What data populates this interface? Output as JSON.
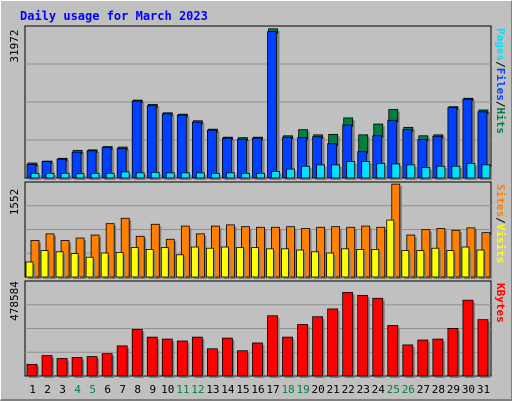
{
  "title": "Daily usage for March 2023",
  "colors": {
    "title": "#0000ff",
    "hits": "#008040",
    "files": "#0040ff",
    "pages": "#00e0ff",
    "visits": "#ffff00",
    "sites": "#ff8000",
    "kbytes": "#ff0000",
    "weekend": "#008040",
    "weekday": "#000000"
  },
  "chart_data": [
    {
      "type": "bar",
      "title": "Daily usage for March 2023",
      "max_label": "31972",
      "side_labels": [
        "Pages",
        "/",
        "Files",
        "/",
        "Hits"
      ],
      "ylim": [
        0,
        31972
      ],
      "categories": [
        "1",
        "2",
        "3",
        "4",
        "5",
        "6",
        "7",
        "8",
        "9",
        "10",
        "11",
        "12",
        "13",
        "14",
        "15",
        "16",
        "17",
        "18",
        "19",
        "20",
        "21",
        "22",
        "23",
        "24",
        "25",
        "26",
        "27",
        "28",
        "29",
        "30",
        "31"
      ],
      "series": [
        {
          "name": "Hits",
          "values": [
            3200,
            3600,
            4200,
            5900,
            6000,
            6700,
            6600,
            16600,
            15700,
            13900,
            13600,
            12200,
            10400,
            8700,
            8600,
            8700,
            31800,
            9000,
            10300,
            9200,
            9300,
            12800,
            9200,
            11500,
            14600,
            10800,
            9000,
            9200,
            15200,
            17000,
            14500
          ]
        },
        {
          "name": "Files",
          "values": [
            2900,
            3500,
            4000,
            5500,
            5800,
            6500,
            6300,
            16400,
            15400,
            13700,
            13400,
            11900,
            10200,
            8500,
            8300,
            8500,
            31200,
            8700,
            8600,
            8800,
            7300,
            11300,
            5600,
            9000,
            12300,
            10300,
            8200,
            8900,
            15000,
            16800,
            14100
          ]
        },
        {
          "name": "Pages",
          "values": [
            1000,
            1000,
            1000,
            900,
            1000,
            1000,
            1300,
            1100,
            1200,
            1100,
            1100,
            1100,
            1000,
            1100,
            1000,
            1000,
            1400,
            1900,
            2500,
            2800,
            2800,
            3500,
            3500,
            3100,
            3000,
            2800,
            2200,
            2500,
            2500,
            3100,
            2800
          ]
        }
      ]
    },
    {
      "type": "bar",
      "max_label": "1552",
      "side_labels": [
        "Sites",
        "/",
        "Visits"
      ],
      "ylim": [
        0,
        1552
      ],
      "categories": [
        "1",
        "2",
        "3",
        "4",
        "5",
        "6",
        "7",
        "8",
        "9",
        "10",
        "11",
        "12",
        "13",
        "14",
        "15",
        "16",
        "17",
        "18",
        "19",
        "20",
        "21",
        "22",
        "23",
        "24",
        "25",
        "26",
        "27",
        "28",
        "29",
        "30",
        "31"
      ],
      "series": [
        {
          "name": "Visits",
          "values": [
            250,
            440,
            420,
            390,
            330,
            400,
            410,
            490,
            460,
            490,
            370,
            500,
            480,
            500,
            490,
            490,
            470,
            470,
            450,
            420,
            400,
            470,
            460,
            460,
            950,
            440,
            440,
            480,
            440,
            500,
            450
          ]
        },
        {
          "name": "Sites",
          "values": [
            610,
            720,
            610,
            650,
            700,
            890,
            980,
            680,
            880,
            630,
            850,
            720,
            850,
            870,
            840,
            830,
            830,
            840,
            810,
            830,
            840,
            830,
            850,
            830,
            1550,
            700,
            790,
            810,
            780,
            820,
            740
          ]
        }
      ]
    },
    {
      "type": "bar",
      "max_label": "478584",
      "side_labels": [
        "KBytes"
      ],
      "ylim": [
        0,
        478584
      ],
      "categories": [
        "1",
        "2",
        "3",
        "4",
        "5",
        "6",
        "7",
        "8",
        "9",
        "10",
        "11",
        "12",
        "13",
        "14",
        "15",
        "16",
        "17",
        "18",
        "19",
        "20",
        "21",
        "22",
        "23",
        "24",
        "25",
        "26",
        "27",
        "28",
        "29",
        "30",
        "31"
      ],
      "series": [
        {
          "name": "KBytes",
          "values": [
            60000,
            105000,
            90000,
            95000,
            100000,
            115000,
            155000,
            240000,
            200000,
            190000,
            180000,
            200000,
            140000,
            195000,
            130000,
            170000,
            310000,
            200000,
            265000,
            305000,
            345000,
            430000,
            415000,
            400000,
            260000,
            160000,
            185000,
            190000,
            245000,
            390000,
            290000
          ]
        }
      ]
    }
  ],
  "weekend_days": [
    "4",
    "5",
    "11",
    "12",
    "18",
    "19",
    "25",
    "26"
  ]
}
